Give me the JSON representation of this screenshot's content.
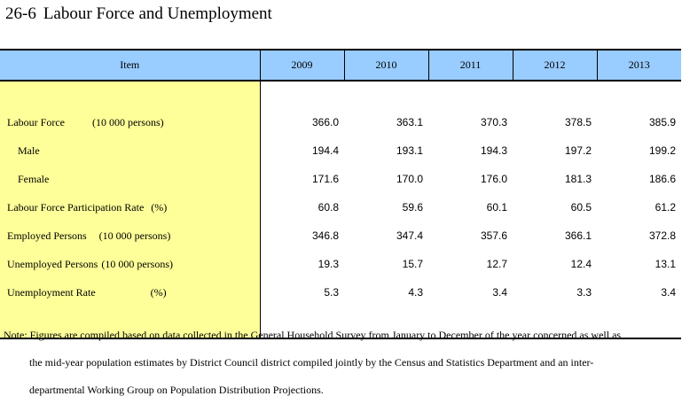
{
  "title": {
    "number": "26-6",
    "text": "Labour Force and Unemployment"
  },
  "table": {
    "header": {
      "item": "Item",
      "years": [
        "2009",
        "2010",
        "2011",
        "2012",
        "2013"
      ]
    },
    "rows": [
      {
        "label": "Labour Force",
        "unit": "(10 000 persons)",
        "values": [
          "366.0",
          "363.1",
          "370.3",
          "378.5",
          "385.9"
        ]
      },
      {
        "label": "Male",
        "unit": "",
        "values": [
          "194.4",
          "193.1",
          "194.3",
          "197.2",
          "199.2"
        ]
      },
      {
        "label": "Female",
        "unit": "",
        "values": [
          "171.6",
          "170.0",
          "176.0",
          "181.3",
          "186.6"
        ]
      },
      {
        "label": "Labour Force Participation Rate",
        "unit": "(%)",
        "values": [
          "60.8",
          "59.6",
          "60.1",
          "60.5",
          "61.2"
        ]
      },
      {
        "label": "Employed Persons",
        "unit": "(10 000 persons)",
        "values": [
          "346.8",
          "347.4",
          "357.6",
          "366.1",
          "372.8"
        ]
      },
      {
        "label": "Unemployed Persons",
        "unit": "(10 000 persons)",
        "values": [
          "19.3",
          "15.7",
          "12.7",
          "12.4",
          "13.1"
        ]
      },
      {
        "label": "Unemployment Rate",
        "unit": "(%)",
        "values": [
          "5.3",
          "4.3",
          "3.4",
          "3.3",
          "3.4"
        ]
      }
    ]
  },
  "note": {
    "line1": "Note: Figures are compiled based on data collected in the General Household Survey from January to December of the year concerned as well as",
    "line2": "the mid-year population estimates by District Council district compiled jointly by the Census and Statistics Department and an inter-",
    "line3": "departmental Working Group on Population Distribution Projections."
  }
}
